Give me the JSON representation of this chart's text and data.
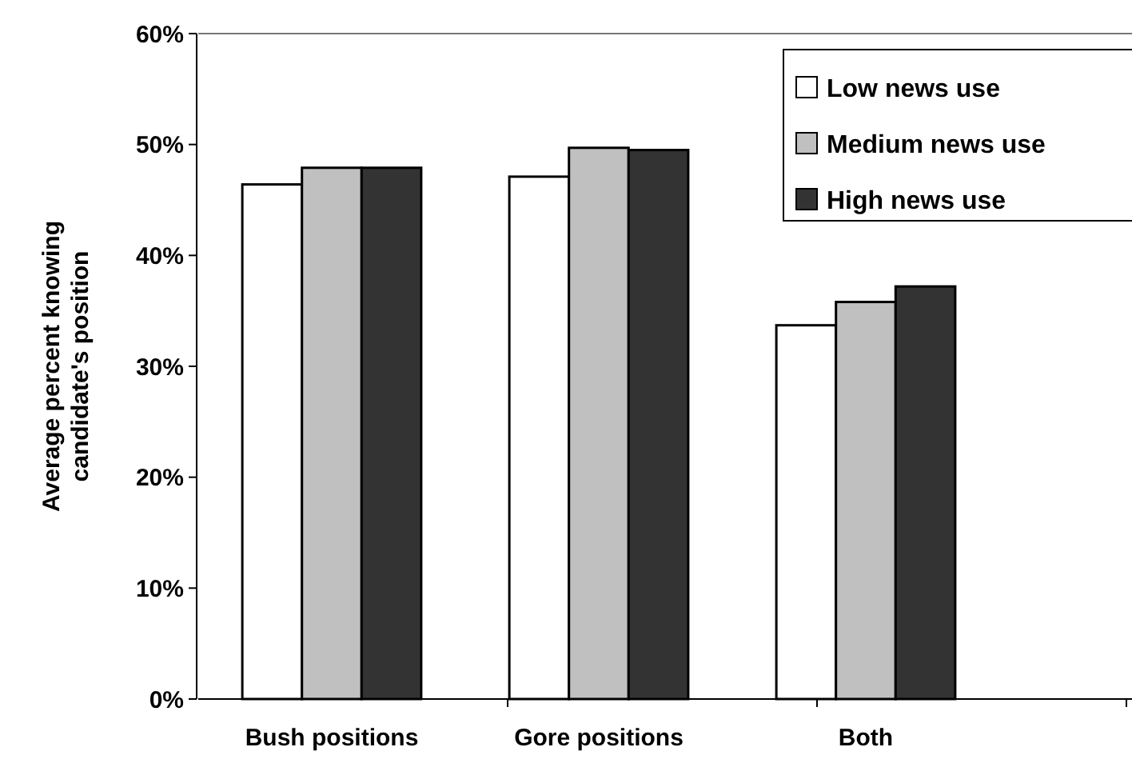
{
  "chart_data": {
    "type": "bar",
    "ylabel": "Average percent knowing candidate's position",
    "categories": [
      "Bush positions",
      "Gore positions",
      "Both"
    ],
    "series": [
      {
        "name": "Low news use",
        "color": "#ffffff",
        "values": [
          46.4,
          47.1,
          33.7
        ]
      },
      {
        "name": "Medium news use",
        "color": "#c0c0c0",
        "values": [
          47.9,
          49.7,
          35.8
        ]
      },
      {
        "name": "High news use",
        "color": "#333333",
        "values": [
          47.9,
          49.5,
          37.2
        ]
      }
    ],
    "ylim": [
      0,
      60
    ],
    "yticks": [
      {
        "value": 0,
        "label": "0%"
      },
      {
        "value": 10,
        "label": "10%"
      },
      {
        "value": 20,
        "label": "20%"
      },
      {
        "value": 30,
        "label": "30%"
      },
      {
        "value": 40,
        "label": "40%"
      },
      {
        "value": 50,
        "label": "50%"
      },
      {
        "value": 60,
        "label": "60%"
      }
    ],
    "grid": false,
    "legend": "top right"
  }
}
